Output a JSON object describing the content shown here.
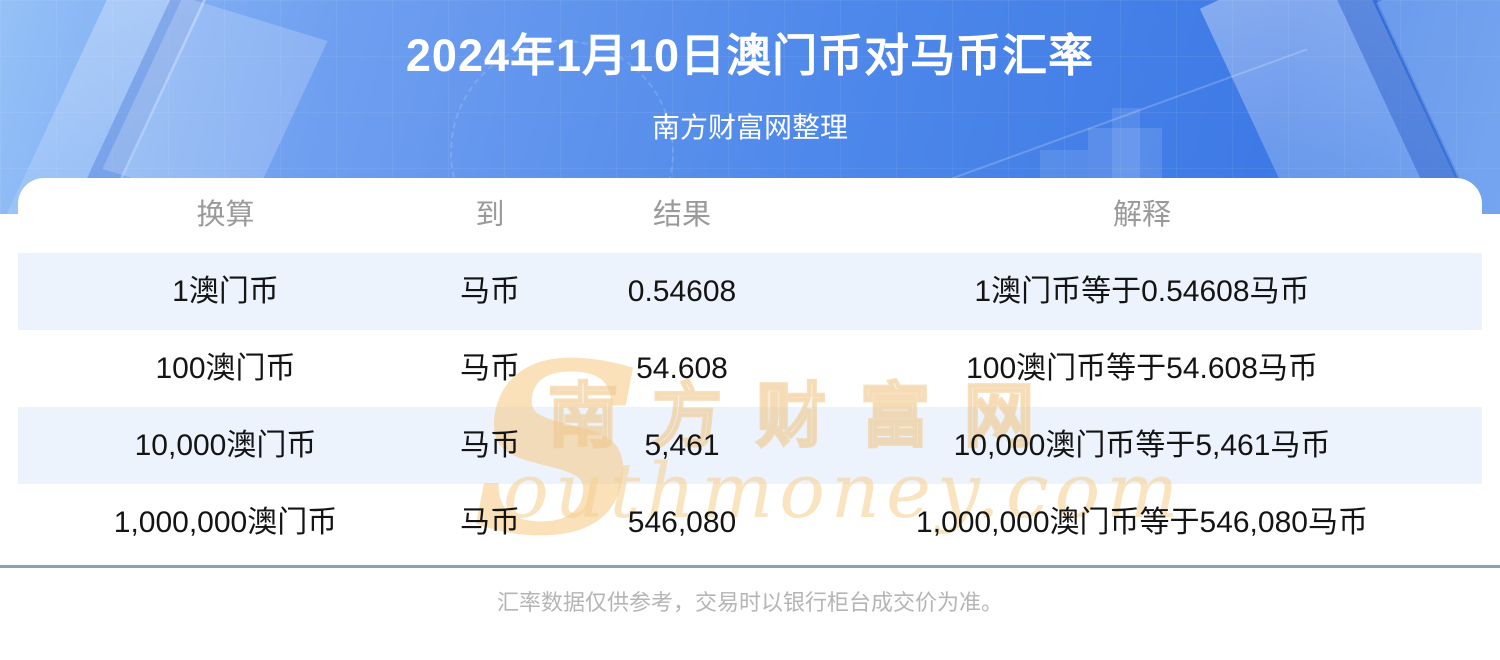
{
  "page": {
    "title": "2024年1月10日澳门币对马币汇率",
    "subtitle": "南方财富网整理",
    "footer_note": "汇率数据仅供参考，交易时以银行柜台成交价为准。"
  },
  "watermark": {
    "initial": "S",
    "site_cn": "南方财富网",
    "site_en": "outhmoney.com"
  },
  "chart_data": {
    "type": "table",
    "title": "2024年1月10日澳门币对马币汇率",
    "columns": [
      "换算",
      "到",
      "结果",
      "解释"
    ],
    "rows": [
      [
        "1澳门币",
        "马币",
        "0.54608",
        "1澳门币等于0.54608马币"
      ],
      [
        "100澳门币",
        "马币",
        "54.608",
        "100澳门币等于54.608马币"
      ],
      [
        "10,000澳门币",
        "马币",
        "5,461",
        "10,000澳门币等于5,461马币"
      ],
      [
        "1,000,000澳门币",
        "马币",
        "546,080",
        "1,000,000澳门币等于546,080马币"
      ]
    ],
    "source_note": "南方财富网整理"
  },
  "colors": {
    "banner_gradient_start": "#95c1f7",
    "banner_gradient_end": "#3e7ae6",
    "row_stripe": "#edf3fc",
    "divider": "#8ba1b4",
    "header_text": "#9a9a9a",
    "body_text": "#141414",
    "footer_text": "#b5b5b5",
    "watermark_tan": "#f3cd8c"
  }
}
